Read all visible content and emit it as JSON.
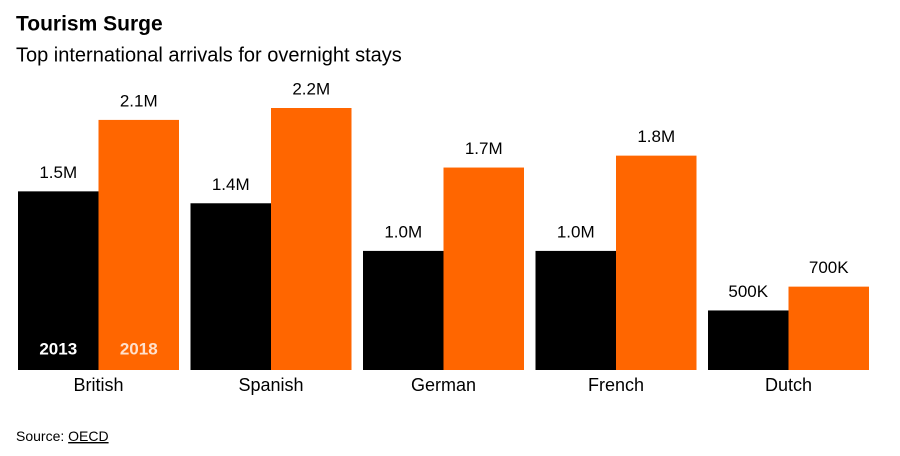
{
  "chart_data": {
    "type": "bar",
    "title": "Tourism Surge",
    "subtitle": "Top international arrivals for overnight stays",
    "categories": [
      "British",
      "Spanish",
      "German",
      "French",
      "Dutch"
    ],
    "series": [
      {
        "name": "2013",
        "color": "#000000",
        "values": [
          1500000,
          1400000,
          1000000,
          1000000,
          500000
        ],
        "value_labels": [
          "1.5M",
          "1.4M",
          "1.0M",
          "1.0M",
          "500K"
        ]
      },
      {
        "name": "2018",
        "color": "#ff6600",
        "values": [
          2100000,
          2200000,
          1700000,
          1800000,
          700000
        ],
        "value_labels": [
          "2.1M",
          "2.2M",
          "1.7M",
          "1.8M",
          "700K"
        ]
      }
    ],
    "source_label": "Source:",
    "source": "OECD"
  }
}
